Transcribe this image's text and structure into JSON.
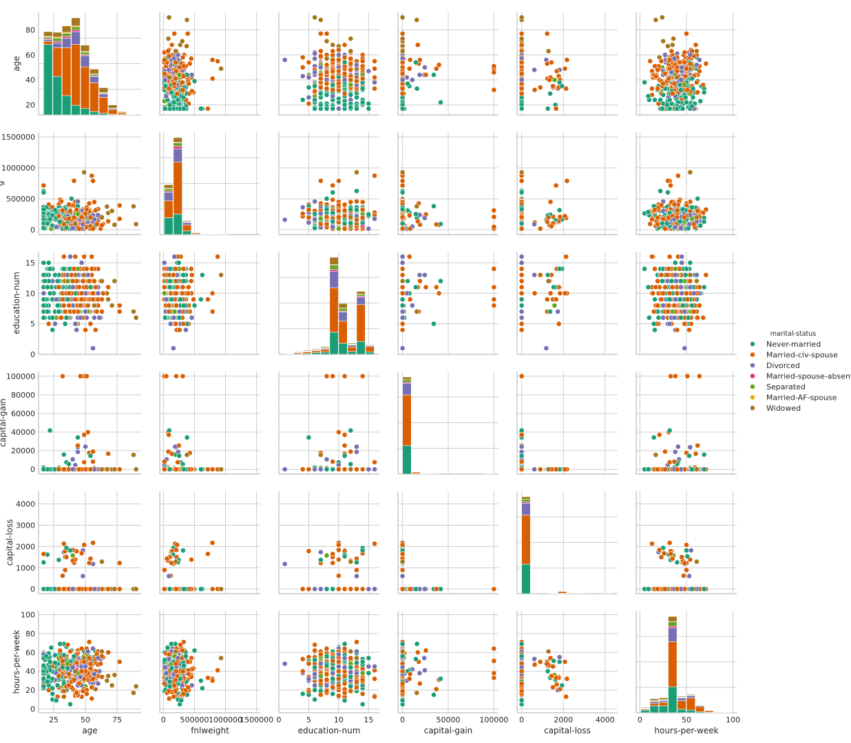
{
  "chart_data": {
    "type": "pairplot",
    "variables": [
      "age",
      "fnlweight",
      "education-num",
      "capital-gain",
      "capital-loss",
      "hours-per-week"
    ],
    "axes": {
      "age": {
        "lim": [
          13,
          94
        ],
        "ticks": [
          25,
          50,
          75
        ],
        "ytick_labels": [
          "20",
          "40",
          "60",
          "80"
        ],
        "yticks": [
          20,
          40,
          60,
          80
        ],
        "ylim": [
          12,
          94
        ]
      },
      "fnlweight": {
        "lim": [
          -60000,
          1560000
        ],
        "ticks": [
          0,
          500000,
          1000000,
          1500000
        ],
        "xtick_labels": [
          "0",
          "500000",
          "1000000",
          "1500000"
        ],
        "ylim": [
          -80000,
          1580000
        ]
      },
      "education-num": {
        "lim": [
          0,
          16.8
        ],
        "ticks": [
          0,
          5,
          10,
          15
        ],
        "yticks": [
          0,
          5,
          10,
          15
        ],
        "ylim": [
          0,
          16.8
        ]
      },
      "capital-gain": {
        "lim": [
          -5000,
          105000
        ],
        "ticks": [
          0,
          50000,
          100000
        ],
        "yticks": [
          0,
          20000,
          40000,
          60000,
          80000,
          100000
        ],
        "ylim": [
          -5000,
          105000
        ]
      },
      "capital-loss": {
        "lim": [
          -220,
          4600
        ],
        "ticks": [
          0,
          2000,
          4000
        ],
        "yticks": [
          0,
          1000,
          2000,
          3000,
          4000
        ],
        "ylim": [
          -220,
          4600
        ]
      },
      "hours-per-week": {
        "lim": [
          -4,
          104
        ],
        "ticks": [
          0,
          50,
          100
        ],
        "yticks": [
          0,
          20,
          40,
          60,
          80,
          100
        ],
        "ylim": [
          -4,
          104
        ]
      }
    },
    "hue": "marital-status",
    "series": [
      {
        "name": "Never-married",
        "color": "#1b9e77"
      },
      {
        "name": "Married-civ-spouse",
        "color": "#d95f02"
      },
      {
        "name": "Divorced",
        "color": "#7570b3"
      },
      {
        "name": "Married-spouse-absent",
        "color": "#e7298a"
      },
      {
        "name": "Separated",
        "color": "#66a61e"
      },
      {
        "name": "Married-AF-spouse",
        "color": "#e6ab02"
      },
      {
        "name": "Widowed",
        "color": "#a6761d"
      }
    ],
    "histograms": {
      "age": {
        "bins": [
          17,
          24.3,
          31.6,
          38.9,
          46.2,
          53.5,
          60.8,
          68.1,
          75.4,
          82.7,
          90
        ],
        "stacks": [
          [
            22,
            1,
            0.5,
            0.3,
            0.5,
            0.2,
            1.5
          ],
          [
            12,
            9,
            1.5,
            0.5,
            1,
            0.3,
            1.5
          ],
          [
            6,
            15,
            3,
            0.5,
            1,
            0.3,
            2
          ],
          [
            3,
            19,
            4,
            0.5,
            1,
            0.3,
            2.5
          ],
          [
            2,
            13,
            3.5,
            0.3,
            0.8,
            0.2,
            2
          ],
          [
            1,
            9,
            2,
            0.2,
            0.5,
            0.1,
            1.5
          ],
          [
            0.5,
            5,
            1,
            0.2,
            0.3,
            0,
            1.5
          ],
          [
            0.2,
            1.5,
            0.3,
            0,
            0.1,
            0,
            1
          ],
          [
            0.1,
            0.5,
            0.1,
            0,
            0,
            0,
            0.3
          ],
          [
            0,
            0.1,
            0,
            0,
            0,
            0,
            0.1
          ]
        ]
      },
      "fnlweight": {
        "bins": [
          12285,
          160000,
          308000,
          456000,
          604000,
          752000,
          900000,
          1048000,
          1196000,
          1344000,
          1484705
        ],
        "stacks": [
          [
            14,
            14,
            7,
            1,
            2,
            0.3,
            3
          ],
          [
            17,
            43,
            11,
            2,
            3,
            0.3,
            4
          ],
          [
            3,
            5,
            2,
            0.3,
            0.5,
            0,
            0.8
          ],
          [
            0.5,
            1,
            0.3,
            0,
            0.1,
            0,
            0.2
          ],
          [
            0.2,
            0.3,
            0.1,
            0,
            0,
            0,
            0.1
          ],
          [
            0.1,
            0.1,
            0,
            0,
            0,
            0,
            0
          ],
          [
            0,
            0.1,
            0,
            0,
            0,
            0,
            0
          ],
          [
            0,
            0,
            0,
            0,
            0,
            0,
            0
          ],
          [
            0,
            0,
            0,
            0,
            0,
            0,
            0
          ],
          [
            0,
            0,
            0,
            0,
            0,
            0,
            0
          ]
        ]
      },
      "education-num": {
        "bins": [
          1,
          2.5,
          4,
          5.5,
          7,
          8.5,
          10,
          11.5,
          13,
          14.5,
          16
        ],
        "stacks": [
          [
            0.1,
            0.2,
            0.1,
            0,
            0.1,
            0,
            0.1
          ],
          [
            0.3,
            0.6,
            0.2,
            0.1,
            0.1,
            0,
            0.3
          ],
          [
            0.5,
            0.8,
            0.3,
            0.1,
            0.2,
            0,
            0.4
          ],
          [
            0.9,
            1.0,
            0.4,
            0.1,
            0.2,
            0,
            0.4
          ],
          [
            1.2,
            1.4,
            0.5,
            0.1,
            0.3,
            0,
            0.6
          ],
          [
            12,
            24,
            9,
            1,
            2.5,
            0.2,
            4
          ],
          [
            6,
            12,
            5,
            0.5,
            1.5,
            0.1,
            2.5
          ],
          [
            1.5,
            2.5,
            1,
            0.2,
            0.3,
            0,
            0.5
          ],
          [
            7,
            20,
            4,
            0.6,
            1,
            0.1,
            1.5
          ],
          [
            1.2,
            3,
            0.6,
            0.1,
            0.2,
            0,
            0.3
          ]
        ]
      },
      "capital-gain": {
        "bins": [
          0,
          9999.9,
          19999.8,
          29999.7,
          39999.6,
          49999.5,
          59999.4,
          69999.3,
          79999.2,
          89999.1,
          99999
        ],
        "stacks": [
          [
            32,
            57,
            13,
            1.3,
            3,
            0.1,
            2.8
          ],
          [
            0.4,
            1.7,
            0.3,
            0,
            0,
            0,
            0.1
          ],
          [
            0.1,
            0.2,
            0.1,
            0,
            0,
            0,
            0
          ],
          [
            0,
            0.1,
            0,
            0,
            0,
            0,
            0
          ],
          [
            0,
            0,
            0,
            0,
            0,
            0,
            0
          ],
          [
            0,
            0,
            0,
            0,
            0,
            0,
            0
          ],
          [
            0,
            0,
            0,
            0,
            0,
            0,
            0
          ],
          [
            0,
            0,
            0,
            0,
            0,
            0,
            0
          ],
          [
            0,
            0,
            0,
            0,
            0,
            0,
            0
          ],
          [
            0.1,
            0.5,
            0.1,
            0,
            0,
            0,
            0
          ]
        ]
      },
      "capital-loss": {
        "bins": [
          0,
          435.6,
          871.2,
          1306.8,
          1742.4,
          2178,
          2613.6,
          3049.2,
          3484.8,
          3920.4,
          4356
        ],
        "stacks": [
          [
            33,
            55,
            13.5,
            1.3,
            3,
            0.1,
            2.8
          ],
          [
            0,
            0,
            0,
            0,
            0,
            0,
            0
          ],
          [
            0,
            0,
            0,
            0,
            0,
            0,
            0
          ],
          [
            0.3,
            0.3,
            0.1,
            0,
            0,
            0,
            0
          ],
          [
            0.5,
            2,
            0.4,
            0,
            0.1,
            0,
            0.1
          ],
          [
            0.1,
            0.7,
            0.1,
            0,
            0,
            0,
            0
          ],
          [
            0,
            0.1,
            0,
            0,
            0,
            0,
            0
          ],
          [
            0,
            0,
            0,
            0,
            0,
            0,
            0
          ],
          [
            0,
            0,
            0,
            0,
            0,
            0,
            0
          ],
          [
            0,
            0.05,
            0,
            0,
            0,
            0,
            0
          ]
        ]
      },
      "hours-per-week": {
        "bins": [
          1,
          10.8,
          20.6,
          30.4,
          40.2,
          50,
          59.8,
          69.6,
          79.4,
          89.2,
          99
        ],
        "stacks": [
          [
            1.5,
            0.5,
            0.4,
            0.1,
            0.2,
            0,
            0.4
          ],
          [
            4,
            1.5,
            1,
            0.2,
            0.4,
            0,
            1
          ],
          [
            4,
            2,
            1,
            0.2,
            0.4,
            0,
            1
          ],
          [
            15,
            26,
            8,
            1,
            2.5,
            0.1,
            3
          ],
          [
            2,
            5,
            1.5,
            0.2,
            0.3,
            0,
            0.5
          ],
          [
            1.5,
            7,
            1.3,
            0.1,
            0.2,
            0,
            0.5
          ],
          [
            0.5,
            3,
            0.6,
            0.1,
            0.1,
            0,
            0.2
          ],
          [
            0.2,
            1,
            0.2,
            0,
            0,
            0,
            0.1
          ],
          [
            0.1,
            0.3,
            0.1,
            0,
            0,
            0,
            0
          ],
          [
            0.1,
            0.3,
            0.1,
            0,
            0,
            0,
            0
          ]
        ]
      }
    },
    "legend": {
      "title": "marital-status",
      "placement": "right-center"
    },
    "grid": true
  }
}
